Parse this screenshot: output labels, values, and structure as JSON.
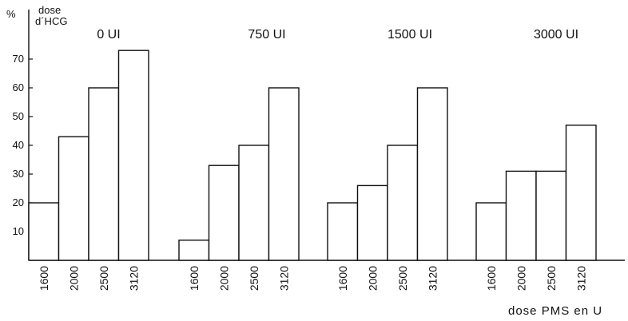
{
  "chart_data": {
    "type": "bar",
    "ylabel_unit": "%",
    "legend_title": [
      "dose",
      "d´HCG"
    ],
    "xlabel": "dose  PMS  en U",
    "ylim": [
      0,
      75
    ],
    "yticks": [
      10,
      20,
      30,
      40,
      50,
      60,
      70
    ],
    "categories": [
      "1600",
      "2000",
      "2500",
      "3120"
    ],
    "groups": [
      {
        "label": "0 UI",
        "values": [
          20,
          43,
          60,
          73
        ]
      },
      {
        "label": "750 UI",
        "values": [
          7,
          33,
          40,
          60
        ]
      },
      {
        "label": "1500 UI",
        "values": [
          20,
          26,
          40,
          60
        ]
      },
      {
        "label": "3000 UI",
        "values": [
          20,
          31,
          31,
          47
        ]
      }
    ],
    "grid": false
  }
}
